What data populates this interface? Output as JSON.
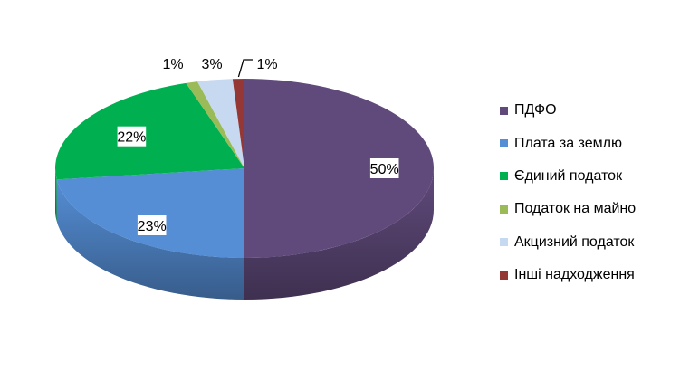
{
  "chart_data": {
    "type": "pie",
    "style": "3d",
    "categories": [
      "ПДФО",
      "Плата за землю",
      "Єдиний податок",
      "Податок на майно",
      "Акцизний податок",
      "Інші надходження"
    ],
    "values": [
      50,
      23,
      22,
      1,
      3,
      1
    ],
    "labels": [
      "50%",
      "23%",
      "22%",
      "1%",
      "3%",
      "1%"
    ],
    "colors": [
      "#604A7B",
      "#558ED5",
      "#00B050",
      "#9BBB59",
      "#C6D9F1",
      "#953735"
    ],
    "legend_position": "right"
  }
}
